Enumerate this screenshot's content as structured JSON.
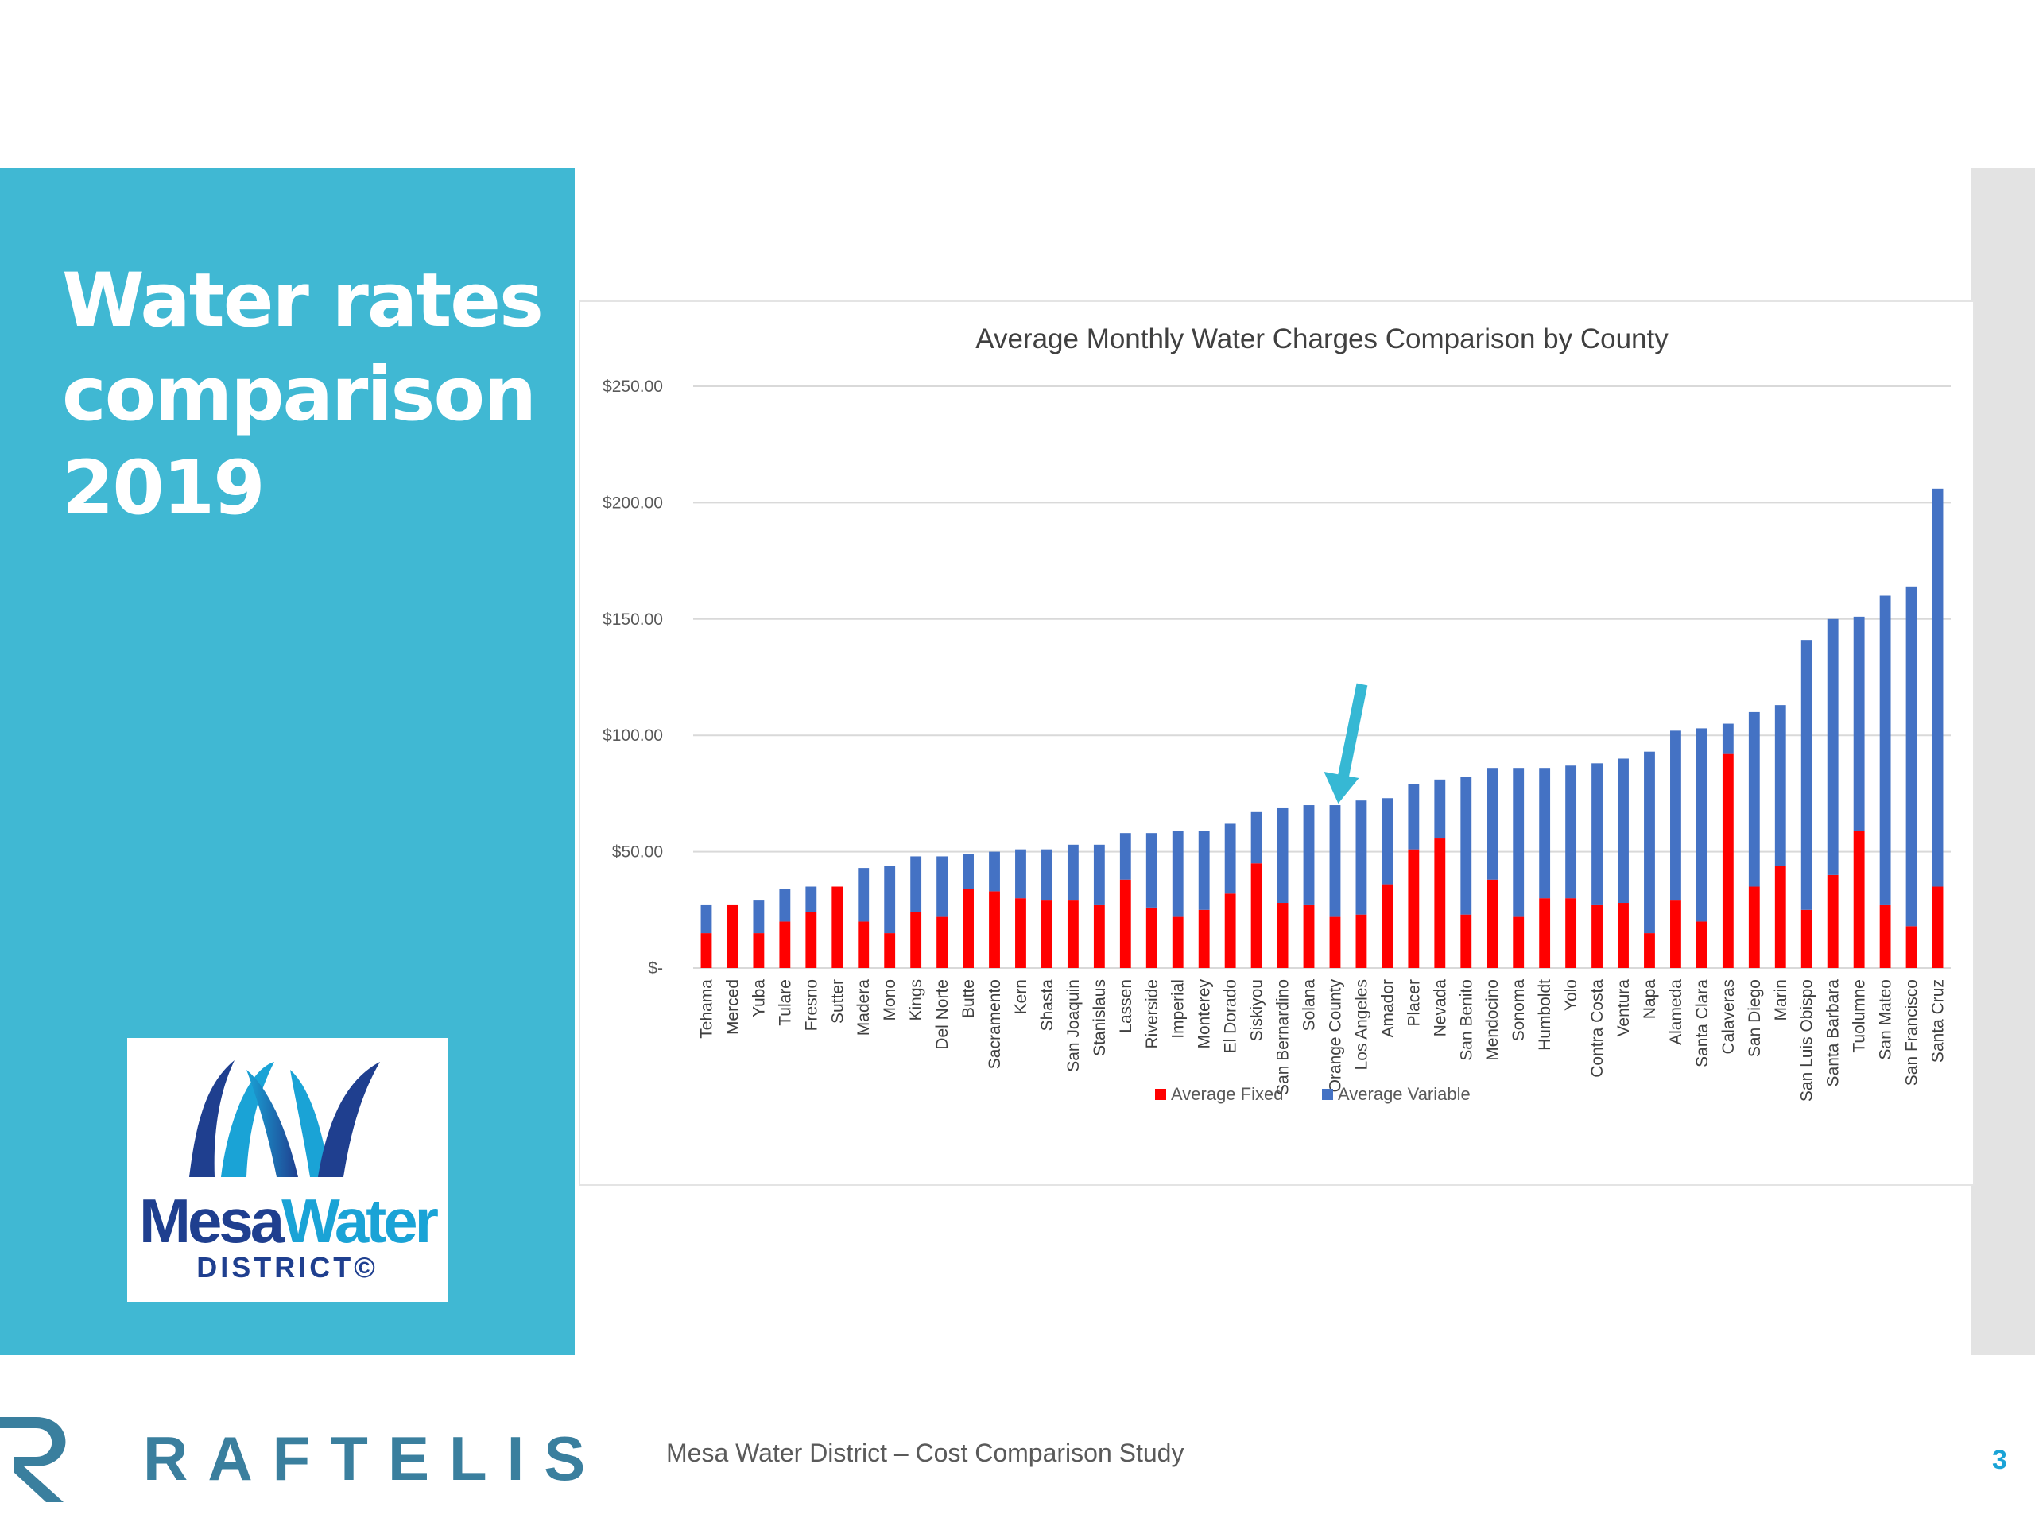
{
  "slide": {
    "title_lines": [
      "Water rates",
      "comparison",
      "2019"
    ],
    "footer_text": "Mesa Water District – Cost Comparison Study",
    "page_number": "3"
  },
  "logo": {
    "name_part1": "Mesa",
    "name_part2": "Water",
    "subtitle": "DISTRICT©"
  },
  "footer_brand": "RAFTELIS",
  "colors": {
    "panel": "#40b8d3",
    "fixed": "#ff0000",
    "variable": "#4472c4",
    "arrow": "#36b8d4",
    "brand": "#3a7f9e",
    "page_number": "#1aa3d6"
  },
  "chart_data": {
    "type": "bar",
    "stacked": true,
    "title": "Average Monthly Water Charges Comparison by County",
    "ylim": [
      0,
      250
    ],
    "yticks": [
      0,
      50,
      100,
      150,
      200,
      250
    ],
    "ytick_labels": [
      "$-",
      "$50.00",
      "$100.00",
      "$150.00",
      "$200.00",
      "$250.00"
    ],
    "grid": true,
    "legend_position": "bottom",
    "categories": [
      "Tehama",
      "Merced",
      "Yuba",
      "Tulare",
      "Fresno",
      "Sutter",
      "Madera",
      "Mono",
      "Kings",
      "Del Norte",
      "Butte",
      "Sacramento",
      "Kern",
      "Shasta",
      "San Joaquin",
      "Stanislaus",
      "Lassen",
      "Riverside",
      "Imperial",
      "Monterey",
      "El Dorado",
      "Siskiyou",
      "San Bernardino",
      "Solana",
      "Orange County",
      "Los Angeles",
      "Amador",
      "Placer",
      "Nevada",
      "San Benito",
      "Mendocino",
      "Sonoma",
      "Humboldt",
      "Yolo",
      "Contra Costa",
      "Ventura",
      "Napa",
      "Alameda",
      "Santa Clara",
      "Calaveras",
      "San Diego",
      "Marin",
      "San Luis Obispo",
      "Santa Barbara",
      "Tuolumne",
      "San Mateo",
      "San Francisco",
      "Santa Cruz"
    ],
    "series": [
      {
        "name": "Average Fixed",
        "color": "#ff0000",
        "values": [
          15,
          27,
          15,
          20,
          24,
          35,
          20,
          15,
          24,
          22,
          34,
          33,
          30,
          29,
          29,
          27,
          38,
          26,
          22,
          25,
          32,
          45,
          28,
          27,
          22,
          23,
          36,
          51,
          56,
          23,
          38,
          22,
          30,
          30,
          27,
          28,
          15,
          29,
          20,
          92,
          35,
          44,
          25,
          40,
          59,
          27,
          18,
          35
        ]
      },
      {
        "name": "Average Variable",
        "color": "#4472c4",
        "values": [
          12,
          0,
          14,
          14,
          11,
          0,
          23,
          29,
          24,
          26,
          15,
          17,
          21,
          22,
          24,
          26,
          20,
          32,
          37,
          34,
          30,
          22,
          41,
          43,
          48,
          49,
          37,
          28,
          25,
          59,
          48,
          64,
          56,
          57,
          61,
          62,
          78,
          73,
          83,
          13,
          75,
          69,
          116,
          110,
          92,
          133,
          146,
          171
        ]
      }
    ],
    "annotation": {
      "type": "arrow",
      "target_category": "Orange County"
    }
  }
}
